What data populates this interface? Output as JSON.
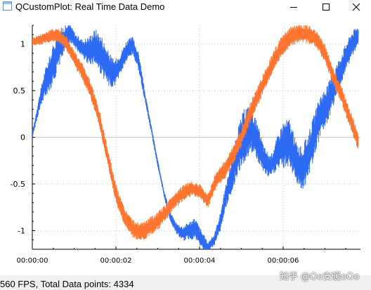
{
  "window": {
    "title": "QCustomPlot: Real Time Data Demo",
    "controls": [
      "minimize-icon",
      "maximize-icon",
      "close-icon"
    ]
  },
  "chart_data": {
    "type": "line",
    "xlabel": "",
    "ylabel": "",
    "xlim": [
      0.0,
      7.85
    ],
    "ylim": [
      -1.2,
      1.2
    ],
    "grid": true,
    "x_ticks": [
      "00:00:00",
      "00:00:02",
      "00:00:04",
      "00:00:06"
    ],
    "y_ticks": [
      "1",
      "0.5",
      "0",
      "-0.5",
      "-1"
    ],
    "series": [
      {
        "color": "#2e6bf5",
        "x": [
          0.0,
          0.15,
          0.3,
          0.45,
          0.6,
          0.75,
          0.9,
          1.05,
          1.2,
          1.35,
          1.5,
          1.65,
          1.8,
          1.95,
          2.1,
          2.25,
          2.4,
          2.55,
          2.7,
          2.85,
          3.0,
          3.15,
          3.3,
          3.45,
          3.6,
          3.75,
          3.9,
          4.05,
          4.2,
          4.35,
          4.5,
          4.65,
          4.8,
          4.95,
          5.1,
          5.25,
          5.4,
          5.55,
          5.7,
          5.85,
          6.0,
          6.15,
          6.3,
          6.45,
          6.6,
          6.75,
          6.9,
          7.05,
          7.2,
          7.35,
          7.5,
          7.65,
          7.8
        ],
        "y": [
          0.02,
          0.33,
          0.58,
          0.72,
          0.92,
          1.05,
          1.12,
          1.02,
          0.95,
          0.93,
          0.97,
          0.88,
          0.75,
          0.68,
          0.78,
          0.92,
          0.98,
          0.8,
          0.42,
          0.08,
          -0.28,
          -0.6,
          -0.85,
          -0.98,
          -1.03,
          -1.0,
          -0.98,
          -1.1,
          -1.18,
          -1.1,
          -0.9,
          -0.6,
          -0.35,
          -0.1,
          0.05,
          0.08,
          -0.08,
          -0.25,
          -0.32,
          -0.18,
          -0.08,
          -0.05,
          -0.25,
          -0.35,
          -0.2,
          0.02,
          0.25,
          0.35,
          0.52,
          0.68,
          0.85,
          1.0,
          1.08
        ],
        "noise": [
          0.03,
          0.08,
          0.15,
          0.2,
          0.22,
          0.15,
          0.1,
          0.08,
          0.1,
          0.15,
          0.2,
          0.22,
          0.2,
          0.15,
          0.12,
          0.12,
          0.1,
          0.1,
          0.05,
          0.04,
          0.04,
          0.04,
          0.05,
          0.06,
          0.08,
          0.1,
          0.12,
          0.1,
          0.06,
          0.06,
          0.1,
          0.14,
          0.2,
          0.26,
          0.3,
          0.25,
          0.2,
          0.15,
          0.12,
          0.18,
          0.26,
          0.26,
          0.22,
          0.24,
          0.25,
          0.24,
          0.22,
          0.2,
          0.2,
          0.18,
          0.16,
          0.14,
          0.12
        ]
      },
      {
        "color": "#ff7530",
        "x": [
          0.0,
          0.2,
          0.4,
          0.6,
          0.8,
          1.0,
          1.2,
          1.4,
          1.6,
          1.8,
          2.0,
          2.2,
          2.4,
          2.6,
          2.8,
          3.0,
          3.2,
          3.4,
          3.6,
          3.8,
          4.0,
          4.2,
          4.4,
          4.6,
          4.8,
          5.0,
          5.2,
          5.4,
          5.6,
          5.8,
          6.0,
          6.2,
          6.4,
          6.6,
          6.8,
          7.0,
          7.2,
          7.4,
          7.6,
          7.8
        ],
        "y": [
          1.02,
          1.05,
          1.08,
          1.1,
          1.02,
          0.85,
          0.7,
          0.5,
          0.2,
          -0.2,
          -0.6,
          -0.85,
          -0.98,
          -1.02,
          -0.96,
          -0.9,
          -0.8,
          -0.68,
          -0.6,
          -0.55,
          -0.58,
          -0.68,
          -0.45,
          -0.35,
          -0.2,
          0.0,
          0.25,
          0.45,
          0.65,
          0.85,
          1.0,
          1.08,
          1.12,
          1.1,
          1.05,
          0.9,
          0.65,
          0.45,
          0.2,
          -0.05
        ],
        "noise": [
          0.05,
          0.06,
          0.07,
          0.08,
          0.08,
          0.08,
          0.09,
          0.1,
          0.1,
          0.1,
          0.1,
          0.1,
          0.1,
          0.1,
          0.1,
          0.1,
          0.09,
          0.09,
          0.09,
          0.08,
          0.08,
          0.08,
          0.09,
          0.1,
          0.1,
          0.1,
          0.11,
          0.11,
          0.11,
          0.11,
          0.11,
          0.11,
          0.1,
          0.1,
          0.1,
          0.1,
          0.1,
          0.1,
          0.1,
          0.1
        ]
      }
    ]
  },
  "status": {
    "text": "560 FPS, Total Data points: 4334"
  },
  "watermark": {
    "text": "知乎 @Oo安暖oOo"
  }
}
